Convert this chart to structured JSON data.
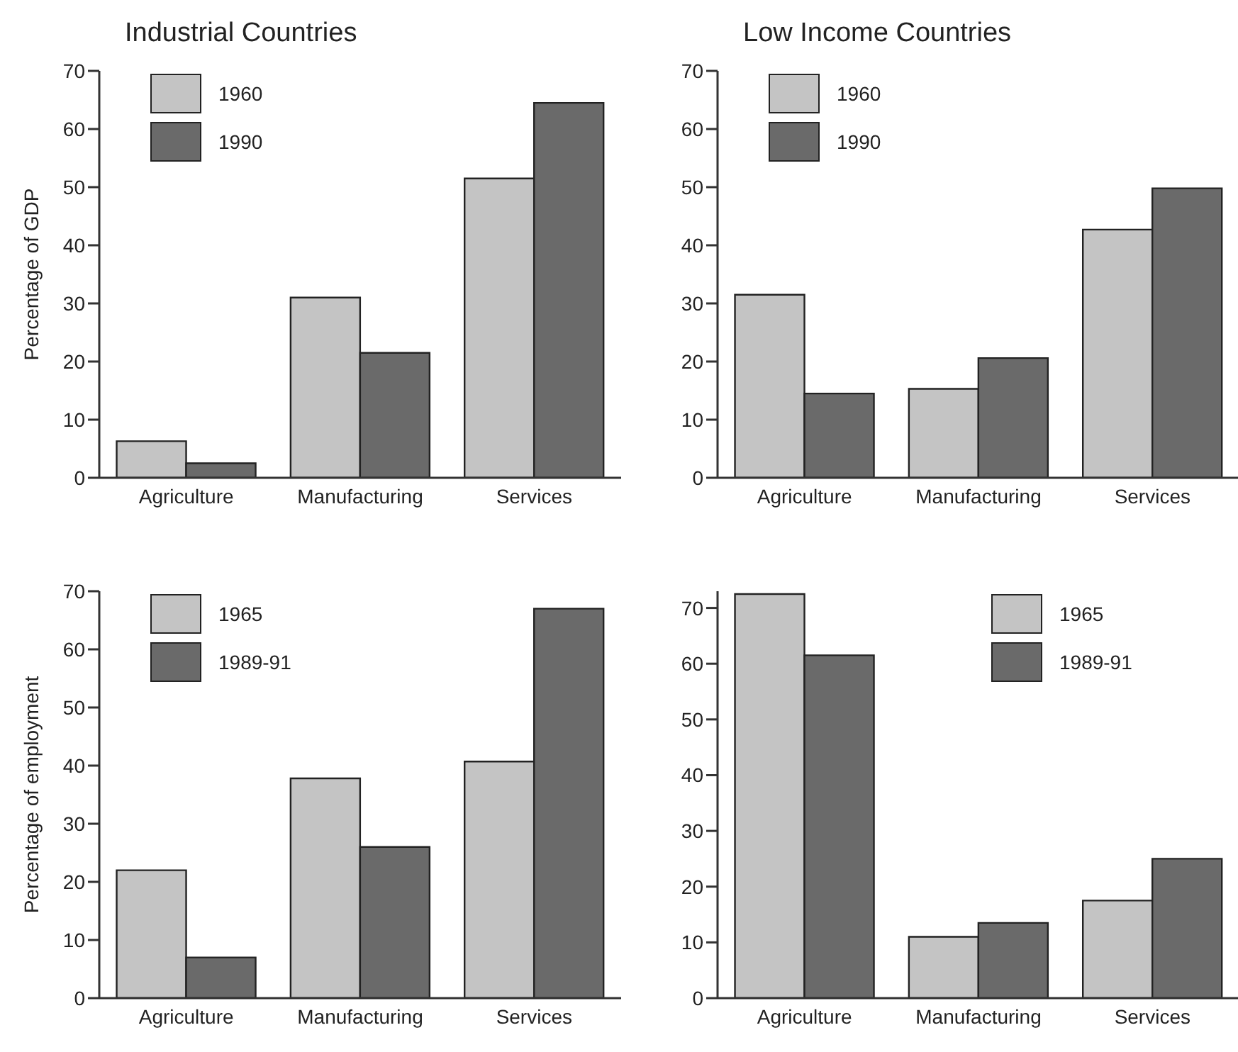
{
  "chart_data": [
    {
      "type": "bar",
      "title": "Industrial Countries",
      "ylabel": "Percentage of GDP",
      "categories": [
        "Agriculture",
        "Manufacturing",
        "Services"
      ],
      "series": [
        {
          "name": "1960",
          "color": "#c4c4c4",
          "values": [
            6.3,
            31,
            51.5
          ]
        },
        {
          "name": "1990",
          "color": "#6a6a6a",
          "values": [
            2.5,
            21.5,
            64.5
          ]
        }
      ],
      "ylim": [
        0,
        70
      ],
      "yticks": [
        0,
        10,
        20,
        30,
        40,
        50,
        60,
        70
      ],
      "legend": "top left"
    },
    {
      "type": "bar",
      "title": "Low Income Countries",
      "categories": [
        "Agriculture",
        "Manufacturing",
        "Services"
      ],
      "series": [
        {
          "name": "1960",
          "color": "#c4c4c4",
          "values": [
            31.5,
            15.3,
            42.7
          ]
        },
        {
          "name": "1990",
          "color": "#6a6a6a",
          "values": [
            14.5,
            20.6,
            49.8
          ]
        }
      ],
      "ylim": [
        0,
        70
      ],
      "yticks": [
        0,
        10,
        20,
        30,
        40,
        50,
        60,
        70
      ],
      "legend": "top left"
    },
    {
      "type": "bar",
      "ylabel": "Percentage of employment",
      "categories": [
        "Agriculture",
        "Manufacturing",
        "Services"
      ],
      "series": [
        {
          "name": "1965",
          "color": "#c4c4c4",
          "values": [
            22,
            37.8,
            40.7
          ]
        },
        {
          "name": "1989-91",
          "color": "#6a6a6a",
          "values": [
            7,
            26,
            67
          ]
        }
      ],
      "ylim": [
        0,
        70
      ],
      "yticks": [
        0,
        10,
        20,
        30,
        40,
        50,
        60,
        70
      ],
      "legend": "top left"
    },
    {
      "type": "bar",
      "categories": [
        "Agriculture",
        "Manufacturing",
        "Services"
      ],
      "series": [
        {
          "name": "1965",
          "color": "#c4c4c4",
          "values": [
            72.5,
            11,
            17.5
          ]
        },
        {
          "name": "1989-91",
          "color": "#6a6a6a",
          "values": [
            61.5,
            13.5,
            25
          ]
        }
      ],
      "ylim": [
        0,
        73
      ],
      "yticks": [
        0,
        10,
        20,
        30,
        40,
        50,
        60,
        70
      ],
      "legend": "top right"
    }
  ]
}
